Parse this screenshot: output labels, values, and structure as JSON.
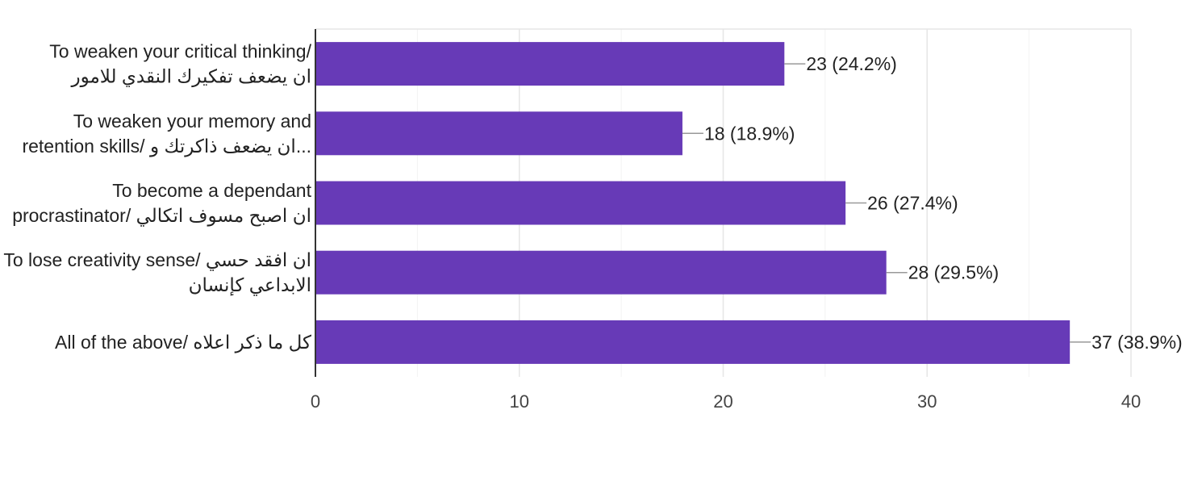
{
  "chart_data": {
    "type": "bar",
    "orientation": "horizontal",
    "categories": [
      [
        "To weaken your critical thinking/",
        "ان يضعف تفكيرك النقدي للامور"
      ],
      [
        "To weaken your memory and",
        "...ان يضعف ذاكرتك و /retention skills"
      ],
      [
        "To become a dependant",
        "ان اصبح مسوف اتكالي /procrastinator"
      ],
      [
        "ان افقد حسي /To lose creativity sense",
        "الابداعي كإنسان"
      ],
      [
        "كل ما ذكر اعلاه /All of the above"
      ]
    ],
    "values": [
      23,
      18,
      26,
      28,
      37
    ],
    "data_labels": [
      "23 (24.2%)",
      "18 (18.9%)",
      "26 (27.4%)",
      "28 (29.5%)",
      "37 (38.9%)"
    ],
    "xlim": [
      0,
      40
    ],
    "xticks": [
      0,
      10,
      20,
      30,
      40
    ],
    "minor_grid": true,
    "grid": true,
    "legend": "none",
    "colors": {
      "bar": "#673ab7",
      "grid": "#e6e6e6",
      "minor_grid": "#f2f2f2",
      "axis": "#333333",
      "text": "#222222",
      "tick_text": "#444444",
      "leader": "#999999"
    }
  }
}
